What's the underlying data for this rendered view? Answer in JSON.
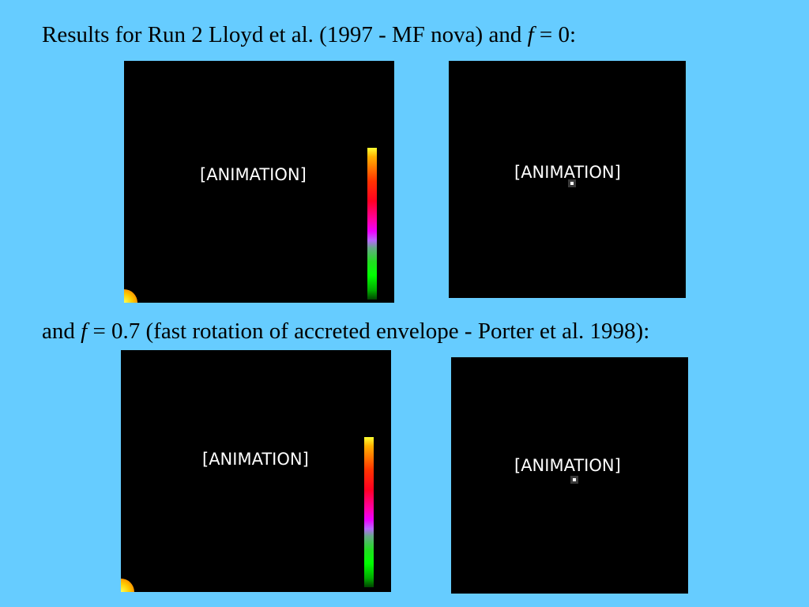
{
  "headings": {
    "first": {
      "prefix": "Results for Run 2 Lloyd et al. (1997 - MF nova) and ",
      "var": "f",
      "suffix": " = 0:"
    },
    "second": {
      "prefix": "and ",
      "var": "f",
      "suffix": " = 0.7 (fast rotation of accreted envelope - Porter et al. 1998):"
    }
  },
  "panels": [
    {
      "label": "[ANIMATION]",
      "has_colorbar": true,
      "has_marker": false
    },
    {
      "label": "[ANIMATION]",
      "has_colorbar": false,
      "has_marker": true
    },
    {
      "label": "[ANIMATION]",
      "has_colorbar": true,
      "has_marker": false
    },
    {
      "label": "[ANIMATION]",
      "has_colorbar": false,
      "has_marker": true
    }
  ],
  "colors": {
    "background": "#66ccff",
    "panel": "#000000",
    "label_text": "#ffffff"
  },
  "icons": {
    "colorbar": "color-scale-bar",
    "corner": "emission-blob",
    "marker": "center-marker"
  }
}
